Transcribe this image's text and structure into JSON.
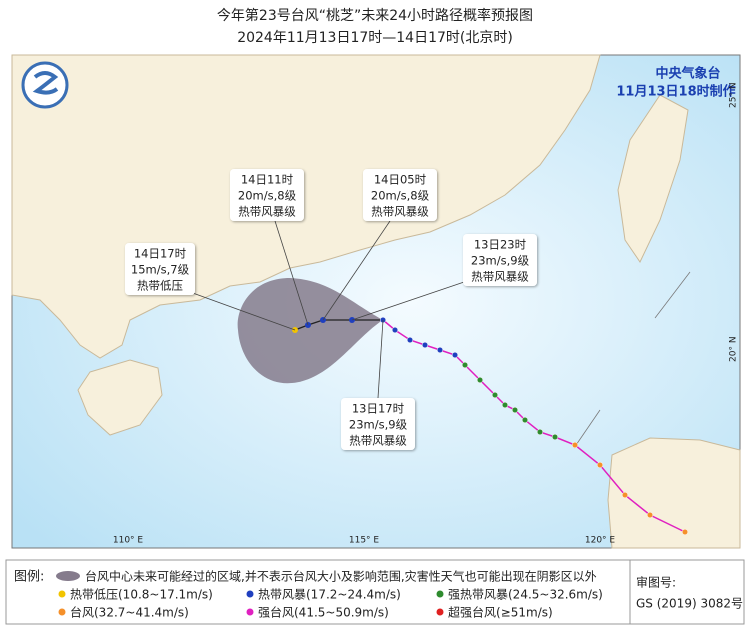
{
  "header": {
    "title": "今年第23号台风“桃芝”未来24小时路径概率预报图",
    "subtitle": "2024年11月13日17时—14日17时(北京时)"
  },
  "agency": {
    "name": "中央气象台",
    "issued": "11月13日18时制作"
  },
  "map": {
    "lat_labels": [
      "25° N",
      "20° N"
    ],
    "lon_labels": [
      "110° E",
      "115° E",
      "120° E"
    ]
  },
  "annotations": [
    {
      "lines": [
        "14日17时",
        "15m/s,7级",
        "热带低压"
      ]
    },
    {
      "lines": [
        "14日11时",
        "20m/s,8级",
        "热带风暴级"
      ]
    },
    {
      "lines": [
        "14日05时",
        "20m/s,8级",
        "热带风暴级"
      ]
    },
    {
      "lines": [
        "13日23时",
        "23m/s,9级",
        "热带风暴级"
      ]
    },
    {
      "lines": [
        "13日17时",
        "23m/s,9级",
        "热带风暴级"
      ]
    }
  ],
  "legend": {
    "title": "图例:",
    "cone": "台风中心未来可能经过的区域,并不表示台风大小及影响范围,灾害性天气也可能出现在阴影区以外",
    "items": [
      {
        "label": "热带低压(10.8~17.1m/s)",
        "color": "#f2c400"
      },
      {
        "label": "热带风暴(17.2~24.4m/s)",
        "color": "#1f3fbf"
      },
      {
        "label": "强热带风暴(24.5~32.6m/s)",
        "color": "#2e8b2e"
      },
      {
        "label": "台风(32.7~41.4m/s)",
        "color": "#f5902a"
      },
      {
        "label": "强台风(41.5~50.9m/s)",
        "color": "#e020c0"
      },
      {
        "label": "超强台风(≥51m/s)",
        "color": "#e02020"
      }
    ]
  },
  "approval": {
    "label": "审图号:",
    "number": "GS (2019) 3082号"
  }
}
